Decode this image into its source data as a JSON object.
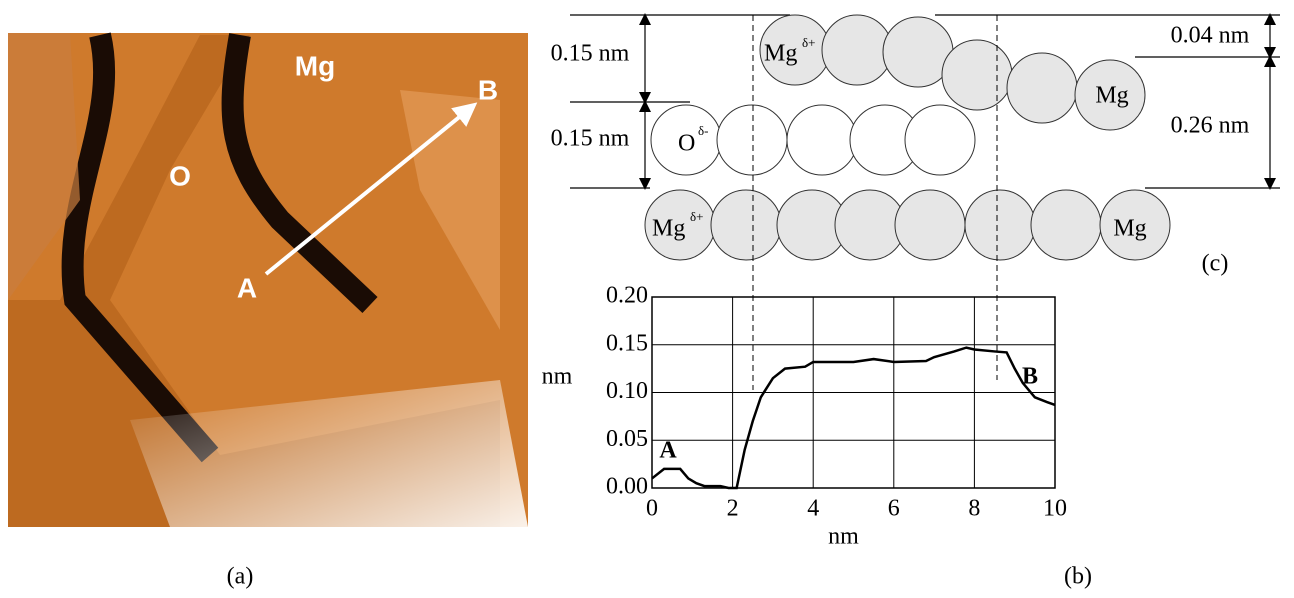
{
  "panel_a": {
    "labels": {
      "mg": "Mg",
      "o": "O",
      "a": "A",
      "b": "B"
    },
    "caption": "(a)"
  },
  "panel_b": {
    "caption": "(b)"
  },
  "panel_c": {
    "caption": "(c)",
    "dims": {
      "top_left": "0.15 nm",
      "mid_left": "0.15 nm",
      "top_right": "0.04 nm",
      "mid_right": "0.26 nm"
    },
    "atoms": {
      "top_first": "Mg",
      "top_first_charge": "δ+",
      "top_last": "Mg",
      "mid_first": "O",
      "mid_first_charge": "δ-",
      "bottom_first": "Mg",
      "bottom_first_charge": "δ+",
      "bottom_last": "Mg"
    }
  },
  "chart_data": {
    "type": "line",
    "xlabel": "nm",
    "ylabel": "nm",
    "x": [
      0,
      0.3,
      0.7,
      0.9,
      1.1,
      1.3,
      1.7,
      1.9,
      2.1,
      2.3,
      2.5,
      2.7,
      3.0,
      3.3,
      3.8,
      4.0,
      5.0,
      5.5,
      6.0,
      6.8,
      7.0,
      7.5,
      7.8,
      8.0,
      8.5,
      8.8,
      9.0,
      9.2,
      9.5,
      9.8,
      10
    ],
    "values": [
      0.01,
      0.02,
      0.02,
      0.01,
      0.005,
      0.002,
      0.002,
      0,
      0,
      0.04,
      0.07,
      0.095,
      0.115,
      0.125,
      0.127,
      0.132,
      0.132,
      0.135,
      0.132,
      0.133,
      0.137,
      0.143,
      0.147,
      0.145,
      0.143,
      0.142,
      0.125,
      0.11,
      0.095,
      0.09,
      0.087
    ],
    "color": "#000000",
    "xlim": [
      0,
      10
    ],
    "xticks": [
      0,
      2,
      4,
      6,
      8,
      10
    ],
    "ylim": [
      0,
      0.2
    ],
    "yticks": [
      {
        "value": 0,
        "label": "0.00"
      },
      0.05,
      {
        "value": 0.1,
        "label": "0.10"
      },
      0.15,
      {
        "value": 0.2,
        "label": "0.20"
      }
    ],
    "grid": true,
    "annotations": {
      "start": "A",
      "end": "B"
    }
  }
}
